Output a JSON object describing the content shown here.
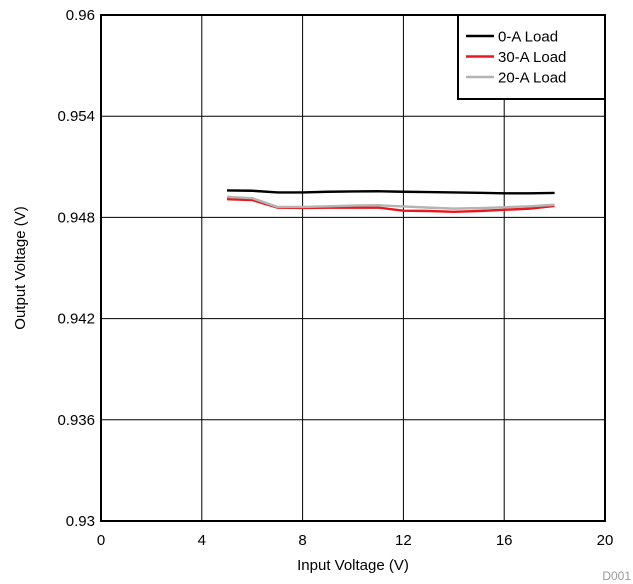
{
  "chart_data": {
    "type": "line",
    "xlabel": "Input Voltage (V)",
    "ylabel": "Output Voltage (V)",
    "xlim": [
      0,
      20
    ],
    "ylim": [
      0.93,
      0.96
    ],
    "x_ticks": [
      0,
      4,
      8,
      12,
      16,
      20
    ],
    "x_tick_labels": [
      "0",
      "4",
      "8",
      "12",
      "16",
      "20"
    ],
    "y_ticks": [
      0.93,
      0.936,
      0.942,
      0.948,
      0.954,
      0.96
    ],
    "y_tick_labels": [
      "0.93",
      "0.936",
      "0.942",
      "0.948",
      "0.954",
      "0.96"
    ],
    "grid": true,
    "legend_position": "top-right",
    "figure_code": "D001",
    "series": [
      {
        "name": "0-A Load",
        "color": "#000000",
        "x": [
          5,
          6,
          7,
          8,
          9,
          10,
          11,
          12,
          13,
          14,
          15,
          16,
          17,
          18
        ],
        "y": [
          0.9496,
          0.94958,
          0.94948,
          0.94948,
          0.94952,
          0.94954,
          0.94955,
          0.94952,
          0.9495,
          0.94948,
          0.94946,
          0.94943,
          0.94943,
          0.94945
        ]
      },
      {
        "name": "30-A Load",
        "color": "#e8191e",
        "x": [
          5,
          6,
          7,
          8,
          9,
          10,
          11,
          12,
          13,
          14,
          15,
          16,
          17,
          18
        ],
        "y": [
          0.94908,
          0.94903,
          0.94858,
          0.94856,
          0.94858,
          0.94858,
          0.94858,
          0.9484,
          0.94838,
          0.94833,
          0.94838,
          0.94845,
          0.94852,
          0.94868
        ]
      },
      {
        "name": "20-A Load",
        "color": "#b4b4b4",
        "x": [
          5,
          6,
          7,
          8,
          9,
          10,
          11,
          12,
          13,
          14,
          15,
          16,
          17,
          18
        ],
        "y": [
          0.94922,
          0.94914,
          0.94862,
          0.94862,
          0.94866,
          0.9487,
          0.94872,
          0.94865,
          0.94858,
          0.94852,
          0.94855,
          0.9486,
          0.94866,
          0.94875
        ]
      }
    ]
  }
}
